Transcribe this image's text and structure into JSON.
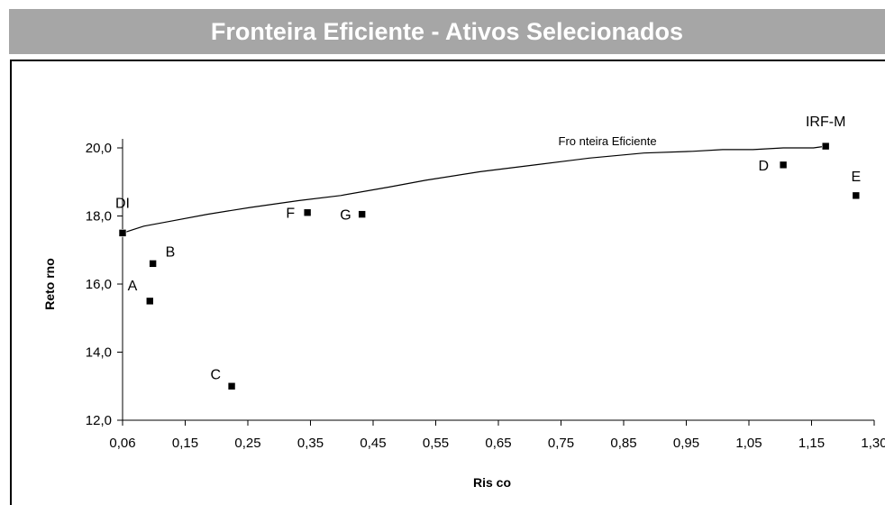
{
  "page_title": "Fronteira Eficiente - Ativos Selecionados",
  "chart_data": {
    "type": "scatter",
    "title": "Fronteira Eficiente - Ativos Selecionados",
    "xlabel": "Ris co",
    "ylabel": "Reto rno",
    "xlim": [
      0.06,
      1.3
    ],
    "ylim": [
      12.0,
      20.0
    ],
    "x_ticks": [
      0.06,
      0.15,
      0.25,
      0.35,
      0.45,
      0.55,
      0.65,
      0.75,
      0.85,
      0.95,
      1.05,
      1.15,
      1.3
    ],
    "x_tick_labels": [
      "0,06",
      "0,15",
      "0,25",
      "0,35",
      "0,45",
      "0,55",
      "0,65",
      "0,75",
      "0,85",
      "0,95",
      "1,05",
      "1,15",
      "1,30"
    ],
    "y_ticks": [
      12.0,
      14.0,
      16.0,
      18.0,
      20.0
    ],
    "y_tick_labels": [
      "12,0",
      "14,0",
      "16,0",
      "18,0",
      "20,0"
    ],
    "grid": false,
    "frontier": {
      "label": "Fro nteira Eficiente",
      "points": [
        [
          0.06,
          17.5
        ],
        [
          0.095,
          17.7
        ],
        [
          0.14,
          17.85
        ],
        [
          0.2,
          18.05
        ],
        [
          0.27,
          18.25
        ],
        [
          0.35,
          18.45
        ],
        [
          0.42,
          18.6
        ],
        [
          0.5,
          18.85
        ],
        [
          0.56,
          19.05
        ],
        [
          0.65,
          19.3
        ],
        [
          0.74,
          19.5
        ],
        [
          0.83,
          19.7
        ],
        [
          0.92,
          19.85
        ],
        [
          1.0,
          19.9
        ],
        [
          1.05,
          19.95
        ],
        [
          1.1,
          19.95
        ],
        [
          1.15,
          20.0
        ],
        [
          1.2,
          20.0
        ],
        [
          1.22,
          20.05
        ]
      ]
    },
    "assets": [
      {
        "name": "DI",
        "x": 0.06,
        "y": 17.5
      },
      {
        "name": "B",
        "x": 0.11,
        "y": 16.6
      },
      {
        "name": "A",
        "x": 0.105,
        "y": 15.5
      },
      {
        "name": "C",
        "x": 0.24,
        "y": 13.0
      },
      {
        "name": "F",
        "x": 0.365,
        "y": 18.1
      },
      {
        "name": "G",
        "x": 0.455,
        "y": 18.05
      },
      {
        "name": "D",
        "x": 1.15,
        "y": 19.5
      },
      {
        "name": "IRF-M",
        "x": 1.22,
        "y": 20.05
      },
      {
        "name": "E",
        "x": 1.27,
        "y": 18.6
      }
    ]
  }
}
